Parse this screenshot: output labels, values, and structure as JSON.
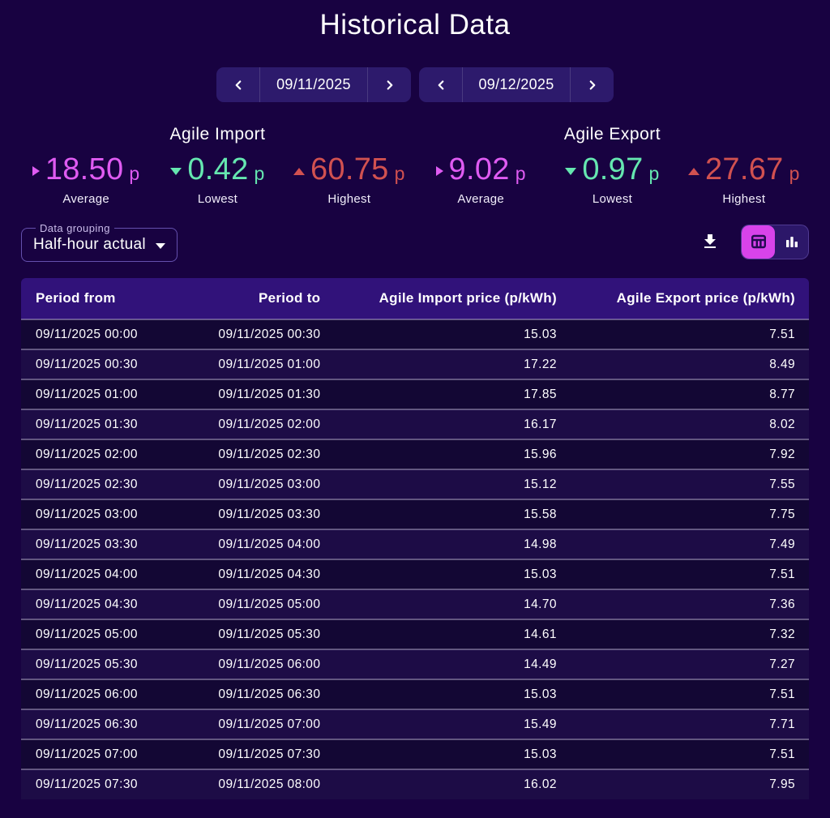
{
  "page": {
    "title": "Historical Data"
  },
  "date_nav": {
    "start": {
      "value": "09/11/2025"
    },
    "end": {
      "value": "09/12/2025"
    }
  },
  "sections": {
    "import": {
      "title": "Agile Import",
      "average": {
        "value": "18.50",
        "unit": "p",
        "label": "Average"
      },
      "lowest": {
        "value": "0.42",
        "unit": "p",
        "label": "Lowest"
      },
      "highest": {
        "value": "60.75",
        "unit": "p",
        "label": "Highest"
      }
    },
    "export": {
      "title": "Agile Export",
      "average": {
        "value": "9.02",
        "unit": "p",
        "label": "Average"
      },
      "lowest": {
        "value": "0.97",
        "unit": "p",
        "label": "Lowest"
      },
      "highest": {
        "value": "27.67",
        "unit": "p",
        "label": "Highest"
      }
    }
  },
  "controls": {
    "grouping": {
      "label": "Data grouping",
      "value": "Half-hour actual"
    },
    "view_selected": "table"
  },
  "colors": {
    "average": "#df5bf2",
    "lowest": "#65e7b0",
    "highest": "#d15150",
    "accent": "#d843ea"
  },
  "table": {
    "columns": [
      "Period from",
      "Period to",
      "Agile Import price (p/kWh)",
      "Agile Export price (p/kWh)"
    ],
    "rows": [
      [
        "09/11/2025 00:00",
        "09/11/2025 00:30",
        "15.03",
        "7.51"
      ],
      [
        "09/11/2025 00:30",
        "09/11/2025 01:00",
        "17.22",
        "8.49"
      ],
      [
        "09/11/2025 01:00",
        "09/11/2025 01:30",
        "17.85",
        "8.77"
      ],
      [
        "09/11/2025 01:30",
        "09/11/2025 02:00",
        "16.17",
        "8.02"
      ],
      [
        "09/11/2025 02:00",
        "09/11/2025 02:30",
        "15.96",
        "7.92"
      ],
      [
        "09/11/2025 02:30",
        "09/11/2025 03:00",
        "15.12",
        "7.55"
      ],
      [
        "09/11/2025 03:00",
        "09/11/2025 03:30",
        "15.58",
        "7.75"
      ],
      [
        "09/11/2025 03:30",
        "09/11/2025 04:00",
        "14.98",
        "7.49"
      ],
      [
        "09/11/2025 04:00",
        "09/11/2025 04:30",
        "15.03",
        "7.51"
      ],
      [
        "09/11/2025 04:30",
        "09/11/2025 05:00",
        "14.70",
        "7.36"
      ],
      [
        "09/11/2025 05:00",
        "09/11/2025 05:30",
        "14.61",
        "7.32"
      ],
      [
        "09/11/2025 05:30",
        "09/11/2025 06:00",
        "14.49",
        "7.27"
      ],
      [
        "09/11/2025 06:00",
        "09/11/2025 06:30",
        "15.03",
        "7.51"
      ],
      [
        "09/11/2025 06:30",
        "09/11/2025 07:00",
        "15.49",
        "7.71"
      ],
      [
        "09/11/2025 07:00",
        "09/11/2025 07:30",
        "15.03",
        "7.51"
      ],
      [
        "09/11/2025 07:30",
        "09/11/2025 08:00",
        "16.02",
        "7.95"
      ]
    ]
  }
}
